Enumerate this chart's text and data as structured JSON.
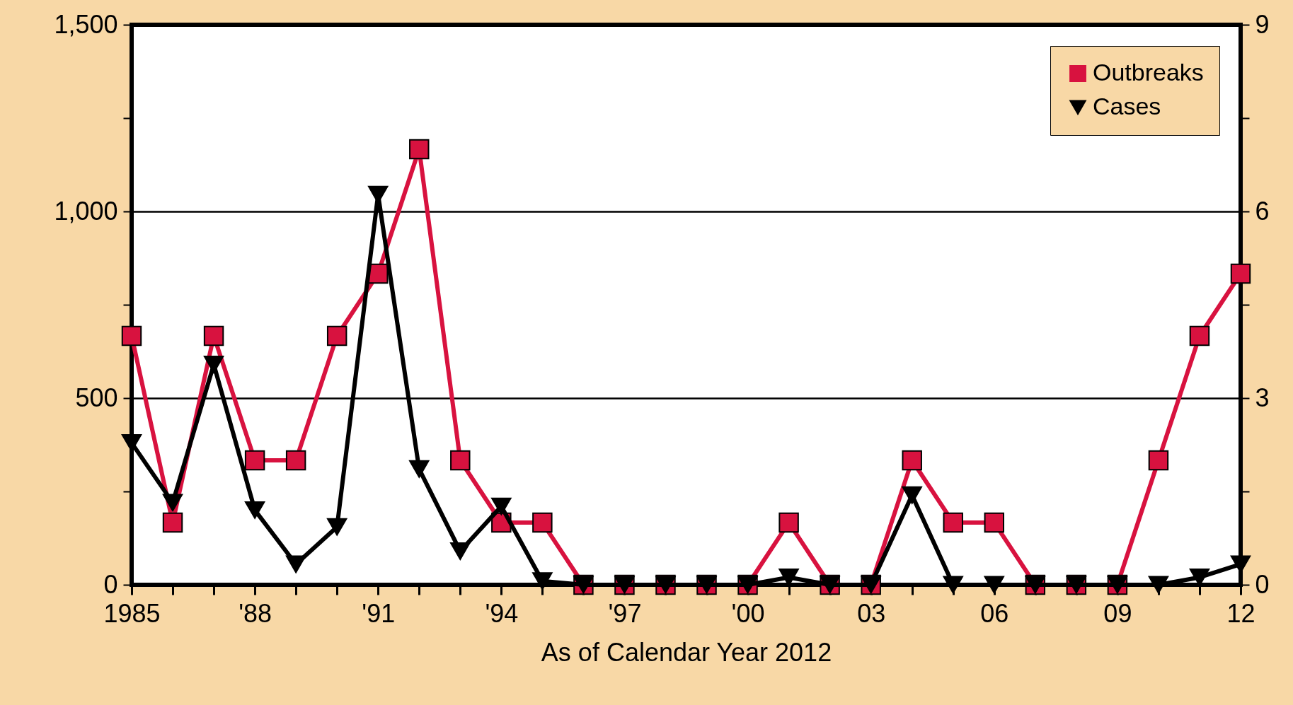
{
  "chart_data": {
    "type": "line",
    "xlabel": "As of Calendar Year 2012",
    "x": [
      1985,
      1986,
      1987,
      1988,
      1989,
      1990,
      1991,
      1992,
      1993,
      1994,
      1995,
      1996,
      1997,
      1998,
      1999,
      2000,
      2001,
      2002,
      2003,
      2004,
      2005,
      2006,
      2007,
      2008,
      2009,
      2010,
      2011,
      2012
    ],
    "series": [
      {
        "name": "Outbreaks",
        "color": "#d8123f",
        "marker": "square",
        "axis": "y2",
        "values": [
          4,
          1,
          4,
          2,
          2,
          4,
          5,
          7,
          2,
          1,
          1,
          0,
          0,
          0,
          0,
          0,
          1,
          0,
          0,
          2,
          1,
          1,
          0,
          0,
          0,
          2,
          4,
          5
        ]
      },
      {
        "name": "Cases",
        "color": "#000000",
        "marker": "triangle",
        "values": [
          380,
          220,
          590,
          200,
          55,
          155,
          1045,
          310,
          90,
          210,
          10,
          0,
          0,
          0,
          0,
          0,
          20,
          0,
          0,
          240,
          0,
          0,
          0,
          0,
          0,
          0,
          20,
          55
        ]
      }
    ],
    "xlim": [
      1985,
      2012
    ],
    "xticks": [
      1985,
      {
        "value": 1986,
        "label": null
      },
      {
        "value": 1987,
        "label": null
      },
      {
        "value": 1988,
        "label": "'88"
      },
      {
        "value": 1989,
        "label": null
      },
      {
        "value": 1990,
        "label": null
      },
      {
        "value": 1991,
        "label": "'91"
      },
      {
        "value": 1992,
        "label": null
      },
      {
        "value": 1993,
        "label": null
      },
      {
        "value": 1994,
        "label": "'94"
      },
      {
        "value": 1995,
        "label": null
      },
      {
        "value": 1996,
        "label": null
      },
      {
        "value": 1997,
        "label": "'97"
      },
      {
        "value": 1998,
        "label": null
      },
      {
        "value": 1999,
        "label": null
      },
      {
        "value": 2000,
        "label": "'00"
      },
      {
        "value": 2001,
        "label": null
      },
      {
        "value": 2002,
        "label": null
      },
      {
        "value": 2003,
        "label": "03"
      },
      {
        "value": 2004,
        "label": null
      },
      {
        "value": 2005,
        "label": null
      },
      {
        "value": 2006,
        "label": "06"
      },
      {
        "value": 2007,
        "label": null
      },
      {
        "value": 2008,
        "label": null
      },
      {
        "value": 2009,
        "label": "09"
      },
      {
        "value": 2010,
        "label": null
      },
      {
        "value": 2011,
        "label": null
      },
      {
        "value": 2012,
        "label": "12"
      }
    ],
    "ylim": [
      0,
      1500
    ],
    "yticks": [
      0,
      {
        "value": 250,
        "label": null
      },
      500,
      {
        "value": 750,
        "label": null
      },
      {
        "value": 1000,
        "label": "1,000"
      },
      {
        "value": 1250,
        "label": null
      },
      {
        "value": 1500,
        "label": "1,500"
      }
    ],
    "y2lim": [
      0,
      9
    ],
    "y2ticks": [
      0,
      {
        "value": 1.5,
        "label": null
      },
      3,
      {
        "value": 4.5,
        "label": null
      },
      6,
      {
        "value": 7.5,
        "label": null
      },
      9
    ],
    "grid": "y",
    "legend": "top right",
    "line_style": "solid"
  }
}
